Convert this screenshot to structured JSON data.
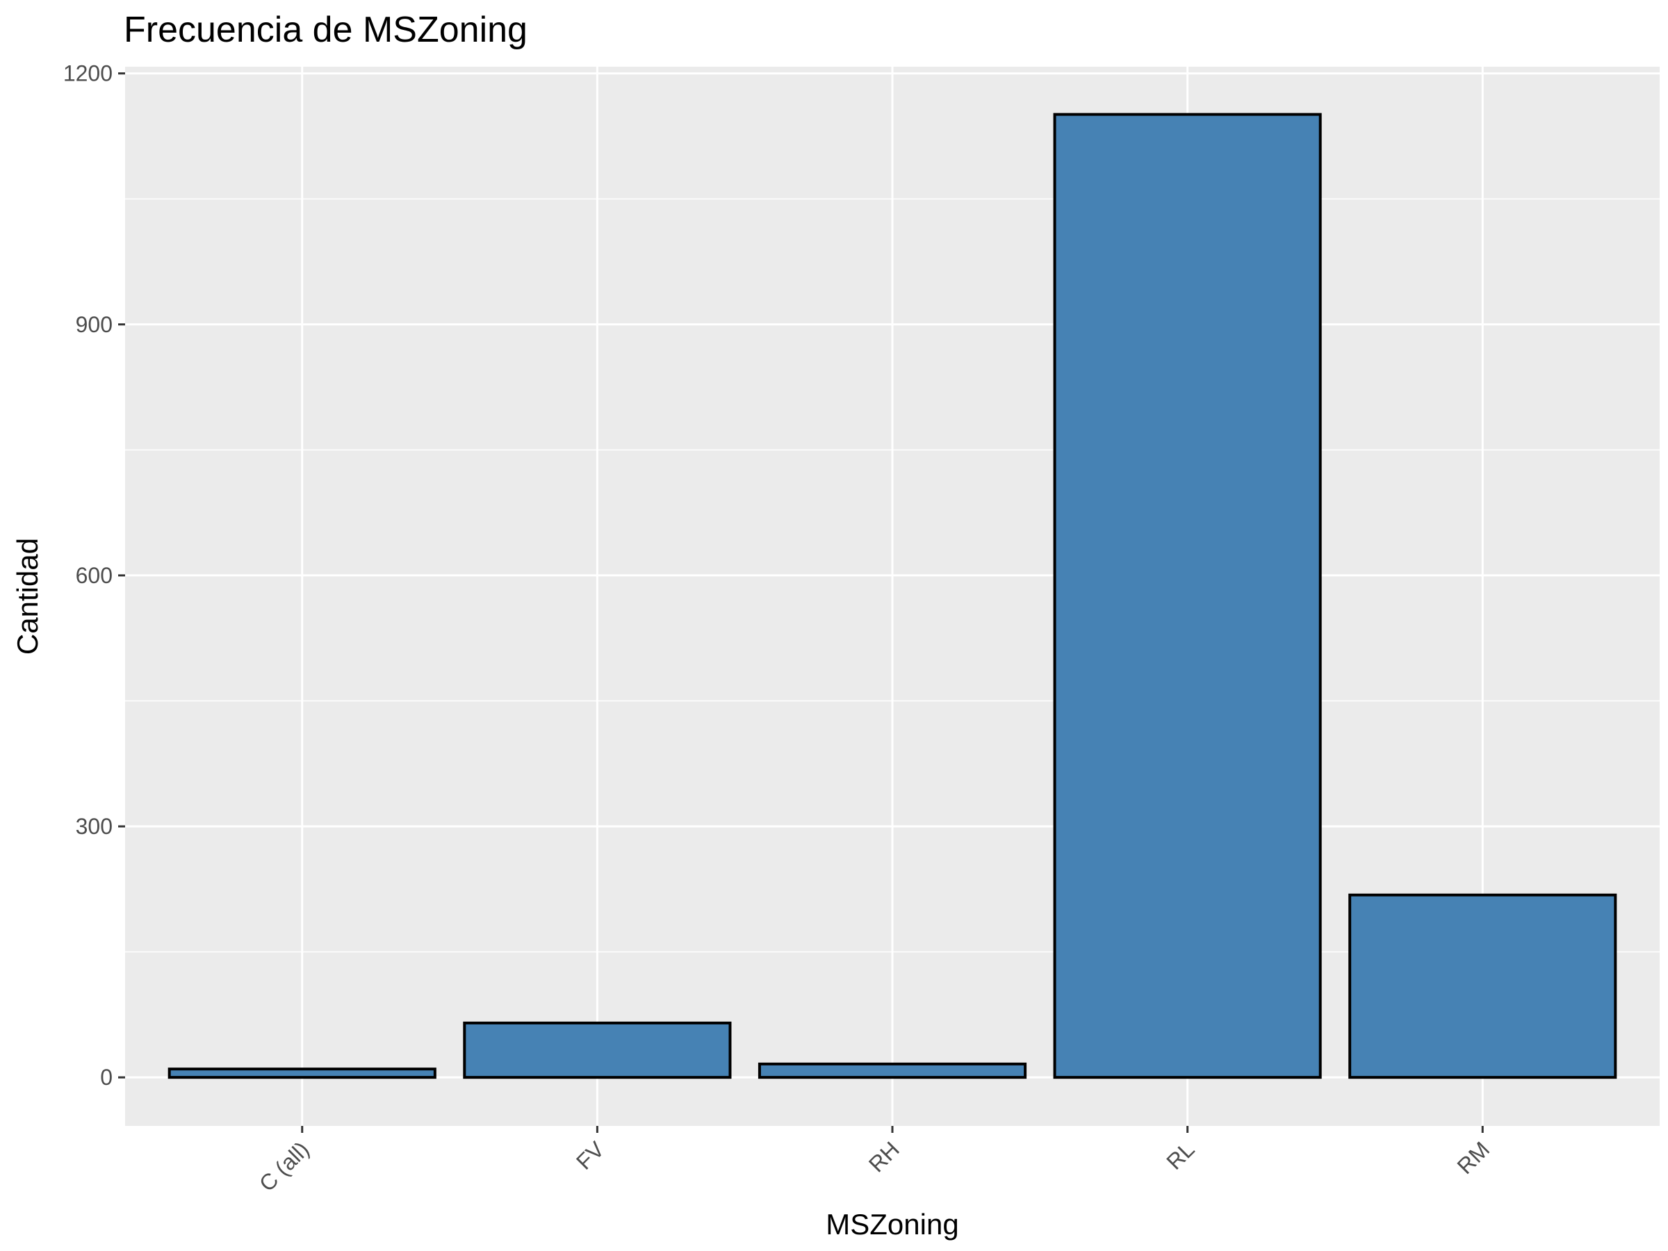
{
  "chart_data": {
    "type": "bar",
    "title": "Frecuencia de MSZoning",
    "xlabel": "MSZoning",
    "ylabel": "Cantidad",
    "categories": [
      "C (all)",
      "FV",
      "RH",
      "RL",
      "RM"
    ],
    "values": [
      10,
      65,
      16,
      1151,
      218
    ],
    "ylim": [
      -58,
      1208
    ],
    "yticks": [
      0,
      300,
      600,
      900,
      1200
    ],
    "grid": true,
    "bar_fill": "#4682b4",
    "bar_stroke": "#000000",
    "panel_background": "#ebebeb"
  }
}
